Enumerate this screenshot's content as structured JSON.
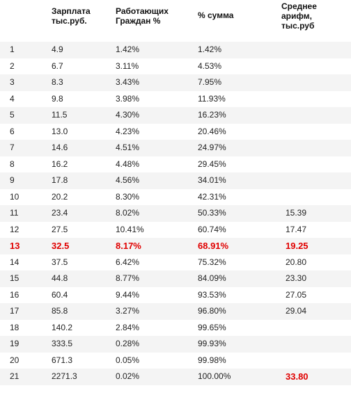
{
  "header": {
    "salary": "Зарплата\nтыс.руб.",
    "workers": "Работающих\nГраждан   %",
    "cumulative": "% сумма",
    "mean": "Среднее\nарифм,\nтыс.руб"
  },
  "highlight_color": "#e00000",
  "rows": [
    {
      "n": "1",
      "salary": "4.9",
      "pct": "1.42%",
      "sum": "1.42%",
      "mean": ""
    },
    {
      "n": "2",
      "salary": "6.7",
      "pct": "3.11%",
      "sum": "4.53%",
      "mean": ""
    },
    {
      "n": "3",
      "salary": "8.3",
      "pct": "3.43%",
      "sum": "7.95%",
      "mean": ""
    },
    {
      "n": "4",
      "salary": "9.8",
      "pct": "3.98%",
      "sum": "11.93%",
      "mean": ""
    },
    {
      "n": "5",
      "salary": "11.5",
      "pct": "4.30%",
      "sum": "16.23%",
      "mean": ""
    },
    {
      "n": "6",
      "salary": "13.0",
      "pct": "4.23%",
      "sum": "20.46%",
      "mean": ""
    },
    {
      "n": "7",
      "salary": "14.6",
      "pct": "4.51%",
      "sum": "24.97%",
      "mean": ""
    },
    {
      "n": "8",
      "salary": "16.2",
      "pct": "4.48%",
      "sum": "29.45%",
      "mean": ""
    },
    {
      "n": "9",
      "salary": "17.8",
      "pct": "4.56%",
      "sum": "34.01%",
      "mean": ""
    },
    {
      "n": "10",
      "salary": "20.2",
      "pct": "8.30%",
      "sum": "42.31%",
      "mean": ""
    },
    {
      "n": "11",
      "salary": "23.4",
      "pct": "8.02%",
      "sum": "50.33%",
      "mean": "15.39"
    },
    {
      "n": "12",
      "salary": "27.5",
      "pct": "10.41%",
      "sum": "60.74%",
      "mean": "17.47"
    },
    {
      "n": "13",
      "salary": "32.5",
      "pct": "8.17%",
      "sum": "68.91%",
      "mean": "19.25",
      "highlight": true
    },
    {
      "n": "14",
      "salary": "37.5",
      "pct": "6.42%",
      "sum": "75.32%",
      "mean": "20.80"
    },
    {
      "n": "15",
      "salary": "44.8",
      "pct": "8.77%",
      "sum": "84.09%",
      "mean": "23.30"
    },
    {
      "n": "16",
      "salary": "60.4",
      "pct": "9.44%",
      "sum": "93.53%",
      "mean": "27.05"
    },
    {
      "n": "17",
      "salary": "85.8",
      "pct": "3.27%",
      "sum": "96.80%",
      "mean": "29.04"
    },
    {
      "n": "18",
      "salary": "140.2",
      "pct": "2.84%",
      "sum": "99.65%",
      "mean": ""
    },
    {
      "n": "19",
      "salary": "333.5",
      "pct": "0.28%",
      "sum": "99.93%",
      "mean": ""
    },
    {
      "n": "20",
      "salary": "671.3",
      "pct": "0.05%",
      "sum": "99.98%",
      "mean": ""
    },
    {
      "n": "21",
      "salary": "2271.3",
      "pct": "0.02%",
      "sum": "100.00%",
      "mean": "33.80",
      "mean_highlight": true
    }
  ]
}
